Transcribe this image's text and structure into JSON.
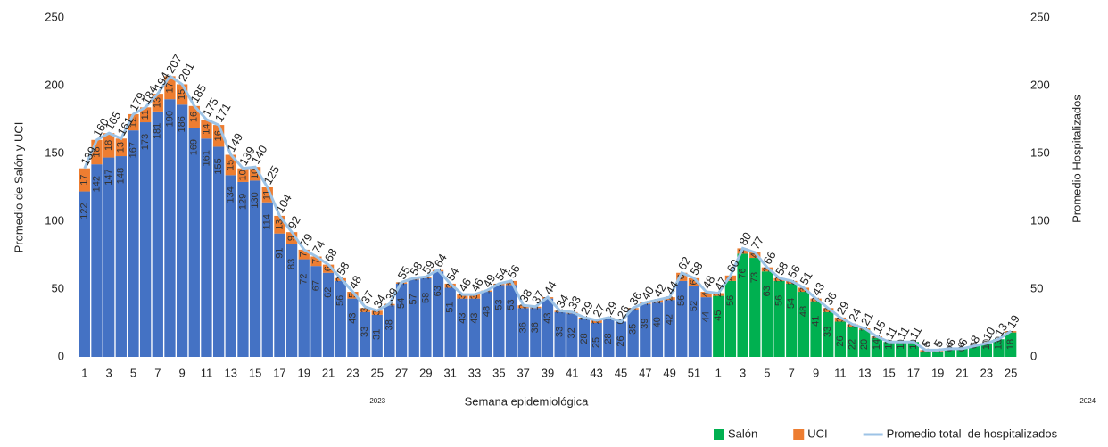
{
  "chart_data": {
    "type": "stacked_bar_line",
    "ylabel": "Promedio de Salón y UCI",
    "y2label": "Promedio Hospitalizados",
    "xlabel": "Semana epidemiológica",
    "ylim": [
      0,
      250
    ],
    "yticks": [
      0,
      50,
      100,
      150,
      200,
      250
    ],
    "y2lim": [
      0,
      250
    ],
    "y2ticks": [
      0,
      50,
      100,
      150,
      200,
      250
    ],
    "legend": "bottom-right",
    "periods": [
      {
        "label": "2023",
        "color": "#4472c4"
      },
      {
        "label": "2024",
        "color": "#00b050"
      }
    ],
    "categories": [
      1,
      null,
      3,
      null,
      5,
      null,
      7,
      null,
      9,
      null,
      11,
      null,
      13,
      null,
      15,
      null,
      17,
      null,
      19,
      null,
      21,
      null,
      23,
      null,
      25,
      null,
      27,
      null,
      29,
      null,
      31,
      null,
      33,
      null,
      35,
      null,
      37,
      null,
      39,
      null,
      41,
      null,
      43,
      null,
      45,
      null,
      47,
      null,
      49,
      null,
      51,
      null,
      1,
      null,
      3,
      null,
      5,
      null,
      7,
      null,
      9,
      null,
      11,
      null,
      13,
      null,
      15,
      null,
      17,
      null,
      19,
      null,
      21,
      null,
      23,
      null,
      25
    ],
    "series": [
      {
        "name": "Salón",
        "color": "#00b050",
        "values": [
          122,
          142,
          147,
          148,
          167,
          173,
          181,
          190,
          186,
          169,
          161,
          155,
          134,
          129,
          130,
          114,
          91,
          83,
          72,
          67,
          62,
          56,
          43,
          33,
          31,
          38,
          54,
          57,
          58,
          63,
          51,
          43,
          43,
          48,
          53,
          53,
          36,
          36,
          43,
          33,
          32,
          28,
          25,
          28,
          26,
          35,
          39,
          40,
          42,
          56,
          52,
          44,
          45,
          56,
          76,
          73,
          63,
          56,
          54,
          48,
          41,
          33,
          26,
          22,
          20,
          14,
          11,
          11,
          11,
          4,
          4,
          6,
          6,
          8,
          10,
          13,
          18
        ]
      },
      {
        "name": "UCI",
        "color": "#ed7d31",
        "values": [
          17,
          18,
          18,
          13,
          12,
          11,
          13,
          17,
          15,
          16,
          14,
          16,
          15,
          10,
          10,
          11,
          13,
          9,
          7,
          7,
          6,
          2,
          5,
          3,
          3,
          1,
          1,
          1,
          1,
          1,
          3,
          3,
          3,
          1,
          1,
          3,
          2,
          1,
          1,
          1,
          1,
          1,
          2,
          1,
          0,
          1,
          1,
          2,
          2,
          6,
          6,
          4,
          2,
          4,
          4,
          4,
          3,
          2,
          2,
          3,
          2,
          3,
          3,
          2,
          1,
          1,
          0,
          0,
          0,
          1,
          1,
          0,
          0,
          0,
          0,
          0,
          1
        ]
      },
      {
        "name": "Promedio total  de hospitalizados",
        "color": "#9dc3e6",
        "axis": "y2",
        "values": [
          139,
          160,
          165,
          161,
          179,
          184,
          194,
          207,
          201,
          185,
          175,
          171,
          149,
          139,
          140,
          125,
          104,
          92,
          79,
          74,
          68,
          58,
          48,
          37,
          34,
          39,
          55,
          58,
          59,
          64,
          54,
          46,
          46,
          49,
          54,
          56,
          38,
          37,
          44,
          34,
          33,
          29,
          27,
          29,
          26,
          36,
          40,
          42,
          44,
          62,
          58,
          48,
          47,
          60,
          80,
          77,
          66,
          58,
          56,
          51,
          43,
          36,
          29,
          24,
          21,
          15,
          11,
          11,
          11,
          5,
          5,
          6,
          6,
          8,
          10,
          13,
          19
        ]
      }
    ]
  }
}
